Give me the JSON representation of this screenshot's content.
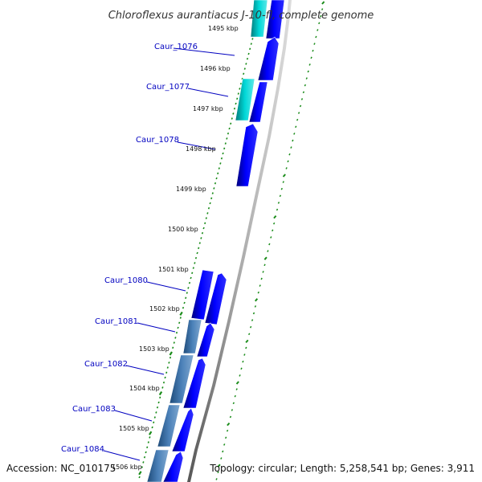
{
  "title": "Chloroflexus aurantiacus J-10-fl, complete genome",
  "footer": {
    "accession": "Accession: NC_010175",
    "summary": "Topology: circular; Length: 5,258,541 bp; Genes: 3,911"
  },
  "colors": {
    "cds_forward": "#0000e0",
    "cds_highlight": "#00c0c0",
    "cds_steel": "#3a6ea5",
    "tick": "#1a8c1a",
    "backbone": "#888888",
    "label": "#0000c0"
  },
  "kbp_ticks": [
    {
      "label": "1495 kbp"
    },
    {
      "label": "1496 kbp"
    },
    {
      "label": "1497 kbp"
    },
    {
      "label": "1498 kbp"
    },
    {
      "label": "1499 kbp"
    },
    {
      "label": "1500 kbp"
    },
    {
      "label": "1501 kbp"
    },
    {
      "label": "1502 kbp"
    },
    {
      "label": "1503 kbp"
    },
    {
      "label": "1504 kbp"
    },
    {
      "label": "1505 kbp"
    },
    {
      "label": "1506 kbp"
    }
  ],
  "gene_labels": [
    {
      "name": "Caur_1076"
    },
    {
      "name": "Caur_1077"
    },
    {
      "name": "Caur_1078"
    },
    {
      "name": "Caur_1080"
    },
    {
      "name": "Caur_1081"
    },
    {
      "name": "Caur_1082"
    },
    {
      "name": "Caur_1083"
    },
    {
      "name": "Caur_1084"
    }
  ]
}
